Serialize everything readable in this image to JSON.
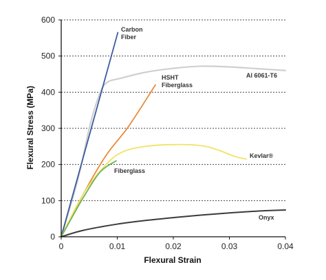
{
  "chart_data": {
    "type": "line",
    "xlabel": "Flexural Strain",
    "ylabel": "Flexural Stress (MPa)",
    "xlim": [
      0,
      0.04
    ],
    "ylim": [
      0,
      600
    ],
    "x_ticks": [
      "0",
      "0.01",
      "0.02",
      "0.03",
      "0.04"
    ],
    "x_tick_values": [
      0,
      0.01,
      0.02,
      0.03,
      0.04
    ],
    "y_ticks": [
      "0",
      "100",
      "200",
      "300",
      "400",
      "500",
      "600"
    ],
    "y_tick_values": [
      0,
      100,
      200,
      300,
      400,
      500,
      600
    ],
    "grid": "horizontal dashed",
    "legend": "inline labels",
    "series": [
      {
        "name_lines": [
          "Al 6061-T6"
        ],
        "color": "#cfcfcf",
        "points": [
          [
            0,
            0
          ],
          [
            0.003,
            160
          ],
          [
            0.005,
            300
          ],
          [
            0.0065,
            380
          ],
          [
            0.008,
            425
          ],
          [
            0.011,
            440
          ],
          [
            0.015,
            455
          ],
          [
            0.02,
            466
          ],
          [
            0.025,
            472
          ],
          [
            0.03,
            470
          ],
          [
            0.035,
            465
          ],
          [
            0.04,
            460
          ]
        ]
      },
      {
        "name_lines": [
          "Carbon",
          "Fiber"
        ],
        "color": "#3a5a9c",
        "points": [
          [
            0,
            0
          ],
          [
            0.0101,
            565
          ]
        ]
      },
      {
        "name_lines": [
          "HSHT",
          "Fiberglass"
        ],
        "color": "#e8893a",
        "points": [
          [
            0,
            0
          ],
          [
            0.004,
            120
          ],
          [
            0.008,
            225
          ],
          [
            0.012,
            305
          ],
          [
            0.0168,
            420
          ]
        ]
      },
      {
        "name_lines": [
          "Kevlar®"
        ],
        "color": "#f2e263",
        "points": [
          [
            0,
            0
          ],
          [
            0.004,
            120
          ],
          [
            0.008,
            200
          ],
          [
            0.011,
            235
          ],
          [
            0.015,
            250
          ],
          [
            0.02,
            255
          ],
          [
            0.025,
            252
          ],
          [
            0.028,
            240
          ],
          [
            0.031,
            222
          ],
          [
            0.033,
            215
          ]
        ]
      },
      {
        "name_lines": [
          "Fiberglass"
        ],
        "color": "#6db35a",
        "points": [
          [
            0,
            0
          ],
          [
            0.004,
            110
          ],
          [
            0.007,
            180
          ],
          [
            0.0098,
            210
          ]
        ]
      },
      {
        "name_lines": [
          "Onyx"
        ],
        "color": "#3a3a3a",
        "points": [
          [
            0,
            0
          ],
          [
            0.004,
            18
          ],
          [
            0.01,
            35
          ],
          [
            0.015,
            45
          ],
          [
            0.02,
            53
          ],
          [
            0.025,
            60
          ],
          [
            0.03,
            66
          ],
          [
            0.035,
            71
          ],
          [
            0.04,
            74
          ]
        ]
      }
    ]
  }
}
